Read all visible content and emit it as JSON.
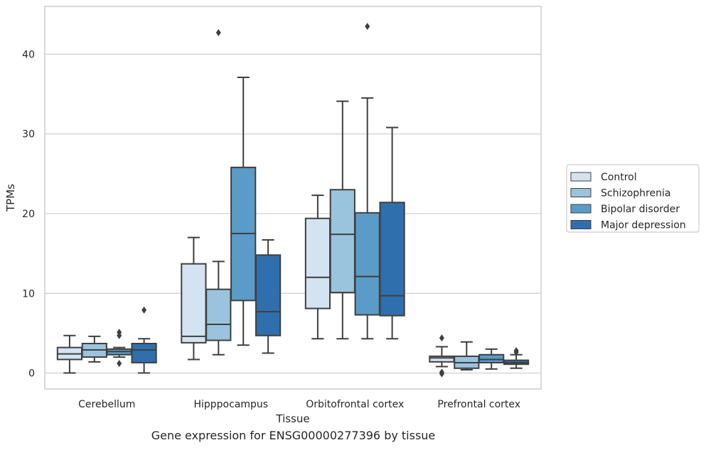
{
  "caption": "Gene expression for ENSG00000277396 by tissue",
  "chart_data": {
    "type": "box",
    "xlabel": "Tissue",
    "ylabel": "TPMs",
    "ylim": [
      -2,
      46
    ],
    "yticks": [
      0,
      10,
      20,
      30,
      40
    ],
    "grid": "horizontal",
    "legend_position": "right",
    "categories": [
      "Cerebellum",
      "Hipppocampus",
      "Orbitofrontal cortex",
      "Prefrontal cortex"
    ],
    "series": [
      {
        "name": "Control",
        "color": "#d4e3f1",
        "boxes": [
          {
            "whislo": 0,
            "q1": 1.7,
            "med": 2.4,
            "q3": 3.2,
            "whishi": 4.7,
            "fliers": []
          },
          {
            "whislo": 1.7,
            "q1": 3.8,
            "med": 4.6,
            "q3": 13.7,
            "whishi": 17.0,
            "fliers": []
          },
          {
            "whislo": 4.3,
            "q1": 8.1,
            "med": 12.0,
            "q3": 19.4,
            "whishi": 22.3,
            "fliers": []
          },
          {
            "whislo": 0.8,
            "q1": 1.4,
            "med": 1.9,
            "q3": 2.1,
            "whishi": 3.3,
            "fliers": [
              4.4,
              0.1,
              -0.1
            ]
          }
        ]
      },
      {
        "name": "Schizophrenia",
        "color": "#9ac4dd",
        "boxes": [
          {
            "whislo": 1.4,
            "q1": 2.0,
            "med": 2.9,
            "q3": 3.7,
            "whishi": 4.6,
            "fliers": []
          },
          {
            "whislo": 2.3,
            "q1": 4.1,
            "med": 6.1,
            "q3": 10.5,
            "whishi": 14.0,
            "fliers": [
              42.7
            ]
          },
          {
            "whislo": 4.3,
            "q1": 10.1,
            "med": 17.4,
            "q3": 23.0,
            "whishi": 34.1,
            "fliers": []
          },
          {
            "whislo": 0.4,
            "q1": 0.6,
            "med": 1.3,
            "q3": 2.1,
            "whishi": 3.9,
            "fliers": []
          }
        ]
      },
      {
        "name": "Bipolar disorder",
        "color": "#5a9cc7",
        "boxes": [
          {
            "whislo": 2.0,
            "q1": 2.3,
            "med": 2.7,
            "q3": 3.0,
            "whishi": 3.2,
            "fliers": [
              5.1,
              4.7,
              1.2
            ]
          },
          {
            "whislo": 3.5,
            "q1": 9.1,
            "med": 17.5,
            "q3": 25.8,
            "whishi": 37.1,
            "fliers": []
          },
          {
            "whislo": 4.3,
            "q1": 7.3,
            "med": 12.1,
            "q3": 20.1,
            "whishi": 34.5,
            "fliers": [
              43.5
            ]
          },
          {
            "whislo": 0.5,
            "q1": 1.3,
            "med": 1.7,
            "q3": 2.3,
            "whishi": 3.0,
            "fliers": []
          }
        ]
      },
      {
        "name": "Major depression",
        "color": "#2f6fae",
        "boxes": [
          {
            "whislo": 0,
            "q1": 1.3,
            "med": 2.9,
            "q3": 3.7,
            "whishi": 4.3,
            "fliers": [
              7.9
            ]
          },
          {
            "whislo": 2.5,
            "q1": 4.7,
            "med": 7.7,
            "q3": 14.8,
            "whishi": 16.7,
            "fliers": []
          },
          {
            "whislo": 4.3,
            "q1": 7.2,
            "med": 9.7,
            "q3": 21.4,
            "whishi": 30.8,
            "fliers": []
          },
          {
            "whislo": 0.6,
            "q1": 1.1,
            "med": 1.3,
            "q3": 1.6,
            "whishi": 2.3,
            "fliers": [
              2.6,
              2.8
            ]
          }
        ]
      }
    ]
  }
}
